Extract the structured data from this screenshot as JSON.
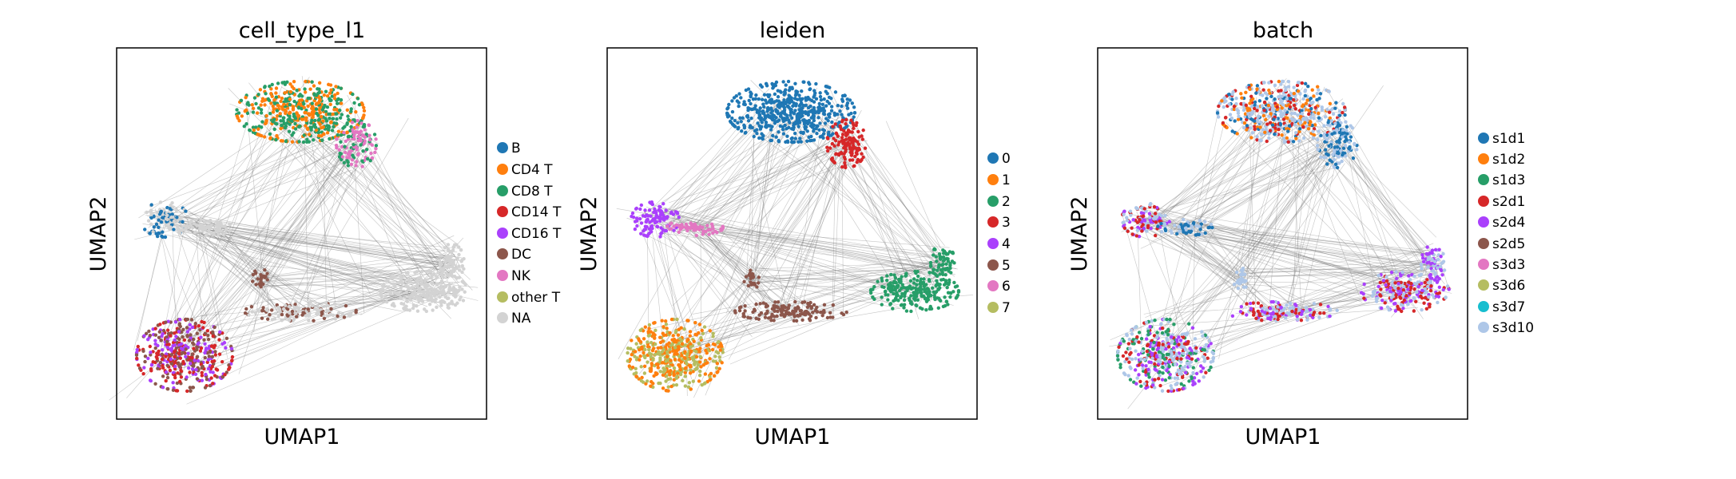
{
  "figure": {
    "panels": [
      {
        "title": "cell_type_l1",
        "xlabel": "UMAP1",
        "ylabel": "UMAP2",
        "legend": [
          {
            "label": "B",
            "color": "#1f77b4"
          },
          {
            "label": "CD4 T",
            "color": "#ff7f0e"
          },
          {
            "label": "CD8 T",
            "color": "#279e68"
          },
          {
            "label": "CD14 T",
            "color": "#d62728"
          },
          {
            "label": "CD16 T",
            "color": "#aa40fc"
          },
          {
            "label": "DC",
            "color": "#8c564b"
          },
          {
            "label": "NK",
            "color": "#e377c2"
          },
          {
            "label": "other T",
            "color": "#b5bd61"
          },
          {
            "label": "NA",
            "color": "#d3d3d3"
          }
        ]
      },
      {
        "title": "leiden",
        "xlabel": "UMAP1",
        "ylabel": "UMAP2",
        "legend": [
          {
            "label": "0",
            "color": "#1f77b4"
          },
          {
            "label": "1",
            "color": "#ff7f0e"
          },
          {
            "label": "2",
            "color": "#279e68"
          },
          {
            "label": "3",
            "color": "#d62728"
          },
          {
            "label": "4",
            "color": "#aa40fc"
          },
          {
            "label": "5",
            "color": "#8c564b"
          },
          {
            "label": "6",
            "color": "#e377c2"
          },
          {
            "label": "7",
            "color": "#b5bd61"
          }
        ]
      },
      {
        "title": "batch",
        "xlabel": "UMAP1",
        "ylabel": "UMAP2",
        "legend": [
          {
            "label": "s1d1",
            "color": "#1f77b4"
          },
          {
            "label": "s1d2",
            "color": "#ff7f0e"
          },
          {
            "label": "s1d3",
            "color": "#279e68"
          },
          {
            "label": "s2d1",
            "color": "#d62728"
          },
          {
            "label": "s2d4",
            "color": "#aa40fc"
          },
          {
            "label": "s2d5",
            "color": "#8c564b"
          },
          {
            "label": "s3d3",
            "color": "#e377c2"
          },
          {
            "label": "s3d6",
            "color": "#b5bd61"
          },
          {
            "label": "s3d7",
            "color": "#17becf"
          },
          {
            "label": "s3d10",
            "color": "#aec7e8"
          }
        ]
      }
    ]
  },
  "chart_data": [
    {
      "type": "scatter",
      "title": "cell_type_l1",
      "xlabel": "UMAP1",
      "ylabel": "UMAP2",
      "ticks": "none",
      "grid": false,
      "legend_position": "right",
      "edge_color": "#808080",
      "series": [
        {
          "name": "B",
          "color": "#1f77b4"
        },
        {
          "name": "CD4 T",
          "color": "#ff7f0e"
        },
        {
          "name": "CD8 T",
          "color": "#279e68"
        },
        {
          "name": "CD14 T",
          "color": "#d62728"
        },
        {
          "name": "CD16 T",
          "color": "#aa40fc"
        },
        {
          "name": "DC",
          "color": "#8c564b"
        },
        {
          "name": "NK",
          "color": "#e377c2"
        },
        {
          "name": "other T",
          "color": "#b5bd61"
        },
        {
          "name": "NA",
          "color": "#d3d3d3"
        }
      ]
    },
    {
      "type": "scatter",
      "title": "leiden",
      "xlabel": "UMAP1",
      "ylabel": "UMAP2",
      "ticks": "none",
      "grid": false,
      "legend_position": "right",
      "edge_color": "#808080",
      "series": [
        {
          "name": "0",
          "color": "#1f77b4"
        },
        {
          "name": "1",
          "color": "#ff7f0e"
        },
        {
          "name": "2",
          "color": "#279e68"
        },
        {
          "name": "3",
          "color": "#d62728"
        },
        {
          "name": "4",
          "color": "#aa40fc"
        },
        {
          "name": "5",
          "color": "#8c564b"
        },
        {
          "name": "6",
          "color": "#e377c2"
        },
        {
          "name": "7",
          "color": "#b5bd61"
        }
      ]
    },
    {
      "type": "scatter",
      "title": "batch",
      "xlabel": "UMAP1",
      "ylabel": "UMAP2",
      "ticks": "none",
      "grid": false,
      "legend_position": "right",
      "edge_color": "#808080",
      "series": [
        {
          "name": "s1d1",
          "color": "#1f77b4"
        },
        {
          "name": "s1d2",
          "color": "#ff7f0e"
        },
        {
          "name": "s1d3",
          "color": "#279e68"
        },
        {
          "name": "s2d1",
          "color": "#d62728"
        },
        {
          "name": "s2d4",
          "color": "#aa40fc"
        },
        {
          "name": "s2d5",
          "color": "#8c564b"
        },
        {
          "name": "s3d3",
          "color": "#e377c2"
        },
        {
          "name": "s3d6",
          "color": "#b5bd61"
        },
        {
          "name": "s3d7",
          "color": "#17becf"
        },
        {
          "name": "s3d10",
          "color": "#aec7e8"
        }
      ]
    }
  ]
}
